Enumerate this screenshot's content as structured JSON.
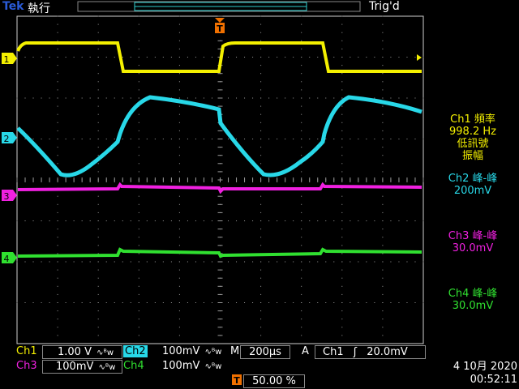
{
  "topbar": {
    "brand": "Tek",
    "run_state": "執行",
    "trigger_status": "Trig'd"
  },
  "channels": [
    {
      "id": "1",
      "color": "#f4f000"
    },
    {
      "id": "2",
      "color": "#28d8e8"
    },
    {
      "id": "3",
      "color": "#f020e0"
    },
    {
      "id": "4",
      "color": "#30e030"
    }
  ],
  "trigger_marker": "T",
  "measurements": {
    "m1": {
      "line1": "Ch1 頻率",
      "line2": "998.2 Hz",
      "line3": "低訊號",
      "line4": "振幅"
    },
    "m2": {
      "line1": "Ch2 峰-峰",
      "line2": "200mV"
    },
    "m3": {
      "line1": "Ch3 峰-峰",
      "line2": "30.0mV"
    },
    "m4": {
      "line1": "Ch4 峰-峰",
      "line2": "30.0mV"
    }
  },
  "bottom": {
    "ch1_name": "Ch1",
    "ch1_scale": "1.00 V",
    "ch2_name": "Ch2",
    "ch2_scale": "100mV",
    "ch3_name": "Ch3",
    "ch3_scale": "100mV",
    "ch4_name": "Ch4",
    "ch4_scale": "100mV",
    "bw_icon": "∿ᴮw",
    "timebase_prefix": "M",
    "timebase": "200µs",
    "trig_mode": "A",
    "trig_source": "Ch1",
    "trig_slope": "ʃ",
    "trig_level": "20.0mV",
    "trig_pos_label": "T",
    "trig_position": "50.00 %",
    "date": "4 10月 2020",
    "time": "00:52:11"
  }
}
